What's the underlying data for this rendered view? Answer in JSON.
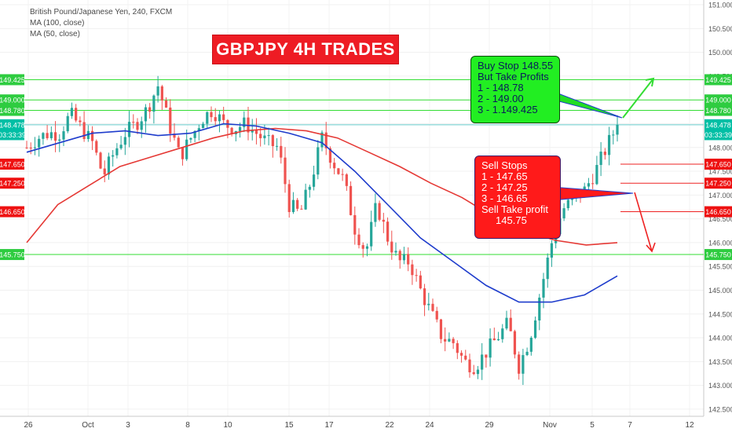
{
  "legend": {
    "symbol_line": "British Pound/Japanese Yen, 240, FXCM",
    "ma100_line": "MA (100, close)",
    "ma50_line": "MA (50, close)"
  },
  "banner": {
    "text": "GBPJPY 4H TRADES"
  },
  "buy_note": {
    "lines": [
      "Buy Stop 148.55",
      "But Take Profits",
      "1 - 148.78",
      "2 - 149.00",
      "3 - 1.149.425"
    ]
  },
  "sell_note": {
    "lines": [
      "Sell Stops",
      "1 - 147.65",
      "2 - 147.25",
      "3 - 146.65",
      "Sell Take profit",
      "     145.75"
    ]
  },
  "chart_data": {
    "type": "candlestick",
    "title": "British Pound/Japanese Yen, 240, FXCM",
    "y_range": [
      142.35,
      151.1
    ],
    "y_ticks": [
      "151.000",
      "150.500",
      "150.000",
      "149.500",
      "149.000",
      "148.500",
      "148.000",
      "147.500",
      "147.000",
      "146.500",
      "146.000",
      "145.500",
      "145.000",
      "144.500",
      "144.000",
      "143.500",
      "143.000",
      "142.500"
    ],
    "y_tick_values": [
      151.0,
      150.5,
      150.0,
      149.5,
      149.0,
      148.5,
      148.0,
      147.5,
      147.0,
      146.5,
      146.0,
      145.5,
      145.0,
      144.5,
      144.0,
      143.5,
      143.0,
      142.5
    ],
    "x_ticks": [
      "26",
      "Oct",
      "3",
      "8",
      "10",
      "15",
      "17",
      "22",
      "24",
      "29",
      "Nov",
      "5",
      "7",
      "12"
    ],
    "price_tags": [
      {
        "label": "149.425",
        "value": 149.425,
        "color": "#2ecc40"
      },
      {
        "label": "149.000",
        "value": 149.0,
        "color": "#2ecc40"
      },
      {
        "label": "148.780",
        "value": 148.78,
        "color": "#2ecc40"
      },
      {
        "label": "148.478",
        "value": 148.478,
        "color": "#00bfa5"
      },
      {
        "label": "03:33:39",
        "value": 148.27,
        "color": "#00bfa5"
      },
      {
        "label": "147.650",
        "value": 147.65,
        "color": "#ee1111"
      },
      {
        "label": "147.250",
        "value": 147.25,
        "color": "#ee1111"
      },
      {
        "label": "146.650",
        "value": 146.65,
        "color": "#ee1111"
      },
      {
        "label": "145.750",
        "value": 145.75,
        "color": "#2ecc40"
      }
    ],
    "levels": [
      {
        "value": 149.425,
        "color": "#33dd33"
      },
      {
        "value": 149.0,
        "color": "#33dd33"
      },
      {
        "value": 148.78,
        "color": "#33dd33"
      },
      {
        "value": 148.478,
        "color": "#66cccc"
      },
      {
        "value": 147.65,
        "color": "#ee2222"
      },
      {
        "value": 147.25,
        "color": "#ee2222"
      },
      {
        "value": 146.65,
        "color": "#ee2222"
      },
      {
        "value": 145.75,
        "color": "#33dd33"
      }
    ],
    "waypoints": [
      148.0,
      148.2,
      148.3,
      148.3,
      148.7,
      148.4,
      148.1,
      147.4,
      147.9,
      148.3,
      148.5,
      148.8,
      149.3,
      148.5,
      147.8,
      148.2,
      148.6,
      148.8,
      148.5,
      148.4,
      148.5,
      148.3,
      148.1,
      148.0,
      146.8,
      146.6,
      147.3,
      148.2,
      147.7,
      147.3,
      146.3,
      145.8,
      146.8,
      146.1,
      145.6,
      145.6,
      145.0,
      144.5,
      144.0,
      143.9,
      143.5,
      143.4,
      143.7,
      144.0,
      144.3,
      143.4,
      144.0,
      145.0,
      146.0,
      146.7,
      146.9,
      147.1,
      147.5,
      148.0,
      148.48
    ],
    "ma100": [
      146.0,
      146.8,
      147.2,
      147.6,
      147.8,
      148.0,
      148.2,
      148.35,
      148.4,
      148.35,
      148.2,
      147.9,
      147.6,
      147.25,
      146.95,
      146.55,
      146.25,
      146.05,
      145.95,
      146.0
    ],
    "ma50": [
      147.9,
      148.1,
      148.3,
      148.35,
      148.25,
      148.3,
      148.5,
      148.45,
      148.3,
      148.1,
      147.5,
      146.8,
      146.1,
      145.6,
      145.1,
      144.75,
      144.75,
      144.9,
      145.3
    ],
    "colors": {
      "up": "#26a69a",
      "down": "#ef5350",
      "ma100": "#e53935",
      "ma50": "#1e3ccc"
    }
  }
}
